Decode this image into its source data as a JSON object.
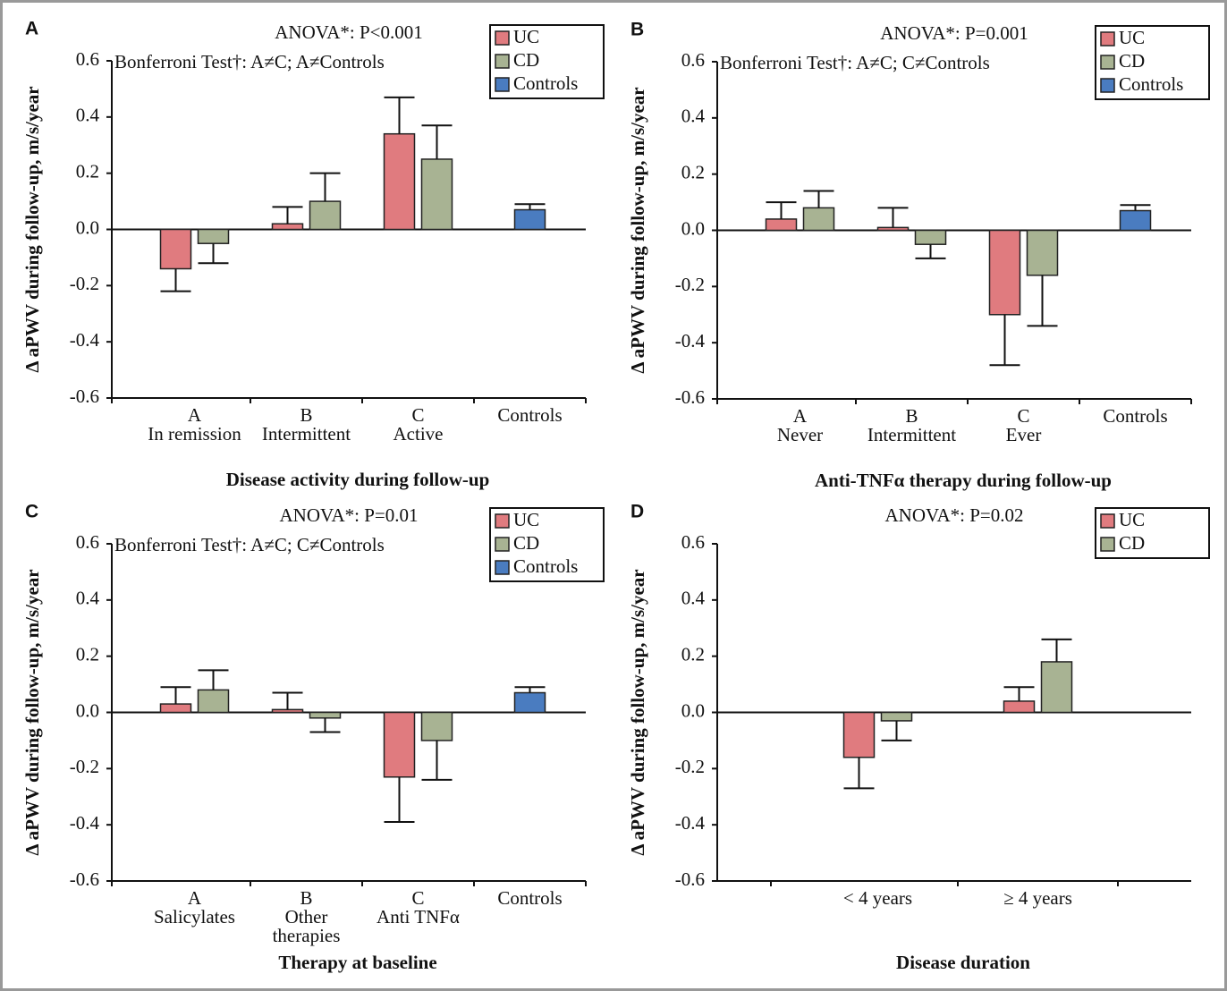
{
  "chart_data": [
    {
      "type": "bar",
      "panel": "A",
      "annotations": [
        "ANOVA*: P<0.001",
        "Bonferroni Test†: A≠C; A≠Controls"
      ],
      "xlabel": "Disease activity during follow-up",
      "ylabel": "Δ aPWV during follow-up, m/s/year",
      "categories": [
        [
          "A",
          "In remission"
        ],
        [
          "B",
          "Intermittent"
        ],
        [
          "C",
          "Active"
        ],
        [
          "Controls"
        ]
      ],
      "series": [
        {
          "name": "UC",
          "color": "#e07b7f",
          "values": [
            -0.14,
            0.02,
            0.34,
            null
          ],
          "errors": [
            0.08,
            0.06,
            0.13,
            null
          ]
        },
        {
          "name": "CD",
          "color": "#a8b393",
          "values": [
            -0.05,
            0.1,
            0.25,
            null
          ],
          "errors": [
            0.07,
            0.1,
            0.12,
            null
          ]
        },
        {
          "name": "Controls",
          "color": "#4a7cc0",
          "values": [
            null,
            null,
            null,
            0.07
          ],
          "errors": [
            null,
            null,
            null,
            0.02
          ]
        }
      ],
      "ylim": [
        -0.6,
        0.6
      ],
      "yticks": [
        -0.6,
        -0.4,
        -0.2,
        {
          "value": 0,
          "label": "0.0"
        },
        0.2,
        0.4,
        0.6
      ],
      "legend": "upper right"
    },
    {
      "type": "bar",
      "panel": "B",
      "annotations": [
        "ANOVA*: P=0.001",
        "Bonferroni Test†: A≠C; C≠Controls"
      ],
      "xlabel": "Anti-TNFα therapy during follow-up",
      "ylabel": "Δ aPWV during follow-up, m/s/year",
      "categories": [
        [
          "A",
          "Never"
        ],
        [
          "B",
          "Intermittent"
        ],
        [
          "C",
          "Ever"
        ],
        [
          "Controls"
        ]
      ],
      "series": [
        {
          "name": "UC",
          "color": "#e07b7f",
          "values": [
            0.04,
            0.01,
            -0.3,
            null
          ],
          "errors": [
            0.06,
            0.07,
            0.18,
            null
          ]
        },
        {
          "name": "CD",
          "color": "#a8b393",
          "values": [
            0.08,
            -0.05,
            -0.16,
            null
          ],
          "errors": [
            0.06,
            0.05,
            0.18,
            null
          ]
        },
        {
          "name": "Controls",
          "color": "#4a7cc0",
          "values": [
            null,
            null,
            null,
            0.07
          ],
          "errors": [
            null,
            null,
            null,
            0.02
          ]
        }
      ],
      "ylim": [
        -0.6,
        0.6
      ],
      "yticks": [
        -0.6,
        -0.4,
        -0.2,
        {
          "value": 0,
          "label": "0.0"
        },
        0.2,
        0.4,
        0.6
      ],
      "legend": "upper right"
    },
    {
      "type": "bar",
      "panel": "C",
      "annotations": [
        "ANOVA*: P=0.01",
        "Bonferroni Test†: A≠C; C≠Controls"
      ],
      "xlabel": "Therapy at baseline",
      "ylabel": "Δ aPWV during follow-up, m/s/year",
      "categories": [
        [
          "A",
          "Salicylates"
        ],
        [
          "B",
          "Other",
          "therapies"
        ],
        [
          "C",
          "Anti TNFα"
        ],
        [
          "Controls"
        ]
      ],
      "series": [
        {
          "name": "UC",
          "color": "#e07b7f",
          "values": [
            0.03,
            0.01,
            -0.23,
            null
          ],
          "errors": [
            0.06,
            0.06,
            0.16,
            null
          ]
        },
        {
          "name": "CD",
          "color": "#a8b393",
          "values": [
            0.08,
            -0.02,
            -0.1,
            null
          ],
          "errors": [
            0.07,
            0.05,
            0.14,
            null
          ]
        },
        {
          "name": "Controls",
          "color": "#4a7cc0",
          "values": [
            null,
            null,
            null,
            0.07
          ],
          "errors": [
            null,
            null,
            null,
            0.02
          ]
        }
      ],
      "ylim": [
        -0.6,
        0.6
      ],
      "yticks": [
        -0.6,
        -0.4,
        -0.2,
        {
          "value": 0,
          "label": "0.0"
        },
        0.2,
        0.4,
        0.6
      ],
      "legend": "upper right"
    },
    {
      "type": "bar",
      "panel": "D",
      "annotations": [
        "ANOVA*: P=0.02"
      ],
      "xlabel": "Disease duration",
      "ylabel": "Δ aPWV during follow-up, m/s/year",
      "categories": [
        [
          "< 4 years"
        ],
        [
          "≥ 4 years"
        ]
      ],
      "series": [
        {
          "name": "UC",
          "color": "#e07b7f",
          "values": [
            -0.16,
            0.04
          ],
          "errors": [
            0.11,
            0.05
          ]
        },
        {
          "name": "CD",
          "color": "#a8b393",
          "values": [
            -0.03,
            0.18
          ],
          "errors": [
            0.07,
            0.08
          ]
        }
      ],
      "ylim": [
        -0.6,
        0.6
      ],
      "yticks": [
        -0.6,
        -0.4,
        -0.2,
        {
          "value": 0,
          "label": "0.0"
        },
        0.2,
        0.4,
        0.6
      ],
      "legend": "upper right"
    }
  ]
}
